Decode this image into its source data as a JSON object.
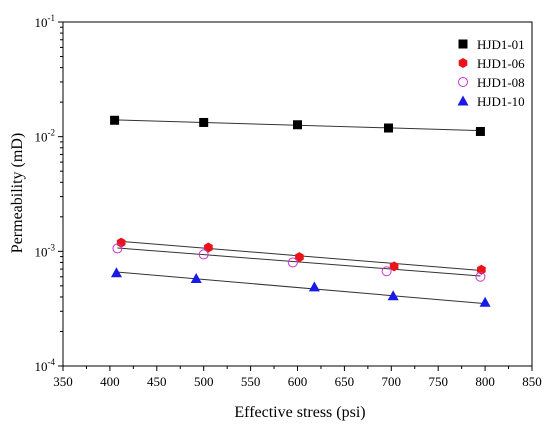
{
  "chart_data": {
    "type": "scatter",
    "xlabel": "Effective stress (psi)",
    "ylabel": "Permeability (mD)",
    "xlim": [
      350,
      850
    ],
    "ylim": [
      0.0001,
      0.1
    ],
    "yscale": "log",
    "x_ticks": [
      350,
      400,
      450,
      500,
      550,
      600,
      650,
      700,
      750,
      800,
      850
    ],
    "y_ticks": [
      {
        "value": 0.0001,
        "base": "10",
        "exp": "-4"
      },
      {
        "value": 0.001,
        "base": "10",
        "exp": "-3"
      },
      {
        "value": 0.01,
        "base": "10",
        "exp": "-2"
      },
      {
        "value": 0.1,
        "base": "10",
        "exp": "-1"
      }
    ],
    "grid": false,
    "legend_position": "top-right",
    "series": [
      {
        "name": "HJD1-01",
        "marker": "square",
        "color": "#000000",
        "x": [
          405,
          500,
          600,
          697,
          795
        ],
        "y": [
          0.0139,
          0.0133,
          0.0127,
          0.0119,
          0.0111
        ],
        "fit": [
          [
            405,
            0.014
          ],
          [
            795,
            0.0113
          ]
        ]
      },
      {
        "name": "HJD1-06",
        "marker": "hexagon",
        "color": "#e8131b",
        "x": [
          412,
          505,
          602,
          703,
          796
        ],
        "y": [
          0.00119,
          0.00108,
          0.00089,
          0.00074,
          0.00069
        ],
        "fit": [
          [
            412,
            0.00122
          ],
          [
            796,
            0.00068
          ]
        ]
      },
      {
        "name": "HJD1-08",
        "marker": "circle-open",
        "color": "#cc33cc",
        "x": [
          408,
          500,
          595,
          695,
          795
        ],
        "y": [
          0.00106,
          0.00094,
          0.0008,
          0.00067,
          0.0006
        ],
        "fit": [
          [
            408,
            0.00107
          ],
          [
            795,
            0.00061
          ]
        ]
      },
      {
        "name": "HJD1-10",
        "marker": "triangle",
        "color": "#1a1ae6",
        "x": [
          407,
          492,
          618,
          702,
          800
        ],
        "y": [
          0.00065,
          0.00058,
          0.00049,
          0.00041,
          0.00036
        ],
        "fit": [
          [
            407,
            0.00066
          ],
          [
            800,
            0.00035
          ]
        ]
      }
    ]
  }
}
